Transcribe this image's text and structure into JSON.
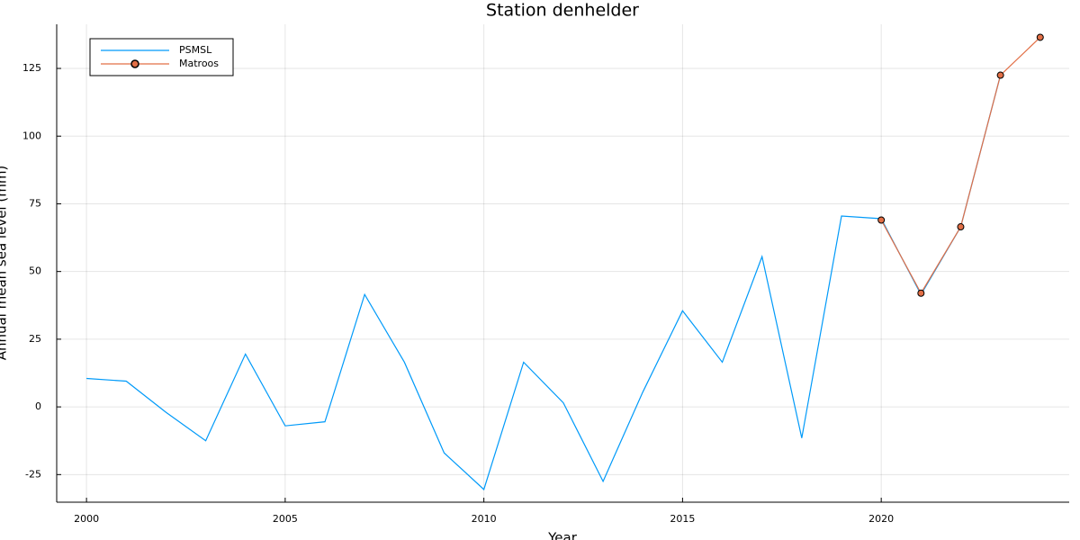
{
  "chart_data": {
    "type": "line",
    "title": "Station denhelder",
    "x_label": "Year",
    "y_label": "Annual mean sea level (mm)",
    "x": [
      2000,
      2001,
      2002,
      2003,
      2004,
      2005,
      2006,
      2007,
      2008,
      2009,
      2010,
      2011,
      2012,
      2013,
      2014,
      2015,
      2016,
      2017,
      2018,
      2019,
      2020,
      2021,
      2022,
      2023,
      2024
    ],
    "series": [
      {
        "name": "PSMSL",
        "color": "#009af9",
        "marker": false,
        "values": [
          10.5,
          9.5,
          -2,
          -12.5,
          19.5,
          -7,
          -5.5,
          41.5,
          16.5,
          -17,
          -30.5,
          16.5,
          1.5,
          -27.5,
          5.5,
          35.5,
          16.5,
          55.5,
          -11.5,
          70.5,
          69.5,
          41.5,
          66.5,
          122.5,
          null
        ]
      },
      {
        "name": "Matroos",
        "color": "#e26f46",
        "marker": true,
        "values": [
          null,
          null,
          null,
          null,
          null,
          null,
          null,
          null,
          null,
          null,
          null,
          null,
          null,
          null,
          null,
          null,
          null,
          null,
          null,
          null,
          69,
          42,
          66.5,
          122.5,
          136.5
        ]
      }
    ],
    "xlim": [
      1999.25,
      2024.73
    ],
    "ylim": [
      -35.2,
      141.3
    ],
    "xticks": [
      2000,
      2005,
      2010,
      2015,
      2020
    ],
    "yticks": [
      -25,
      0,
      25,
      50,
      75,
      100,
      125
    ],
    "grid": true,
    "legend": "top-left"
  }
}
